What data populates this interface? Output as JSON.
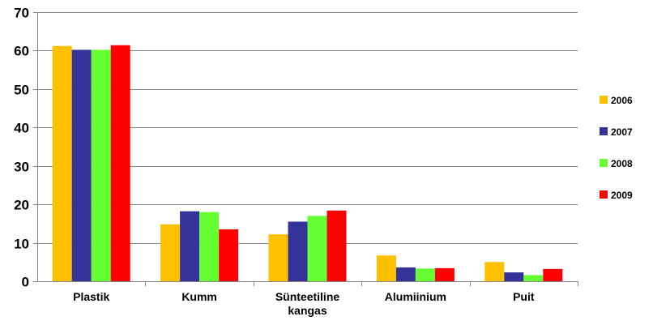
{
  "chart_data": {
    "type": "bar",
    "title": "",
    "xlabel": "",
    "ylabel": "",
    "categories": [
      "Plastik",
      "Kumm",
      "Sünteetiline kangas",
      "Alumiinium",
      "Puit"
    ],
    "ylim": [
      0,
      70
    ],
    "yticks": [
      0,
      10,
      20,
      30,
      40,
      50,
      60,
      70
    ],
    "grid": true,
    "legend_position": "right",
    "series": [
      {
        "name": "2006",
        "color": "#FFC000",
        "values": [
          61.2,
          14.8,
          12.2,
          6.7,
          5.0
        ]
      },
      {
        "name": "2007",
        "color": "#333399",
        "values": [
          60.2,
          18.2,
          15.5,
          3.6,
          2.3
        ]
      },
      {
        "name": "2008",
        "color": "#66FF33",
        "values": [
          60.2,
          18.0,
          17.0,
          3.3,
          1.6
        ]
      },
      {
        "name": "2009",
        "color": "#FF0000",
        "values": [
          61.4,
          13.5,
          18.4,
          3.4,
          3.2
        ]
      }
    ]
  }
}
